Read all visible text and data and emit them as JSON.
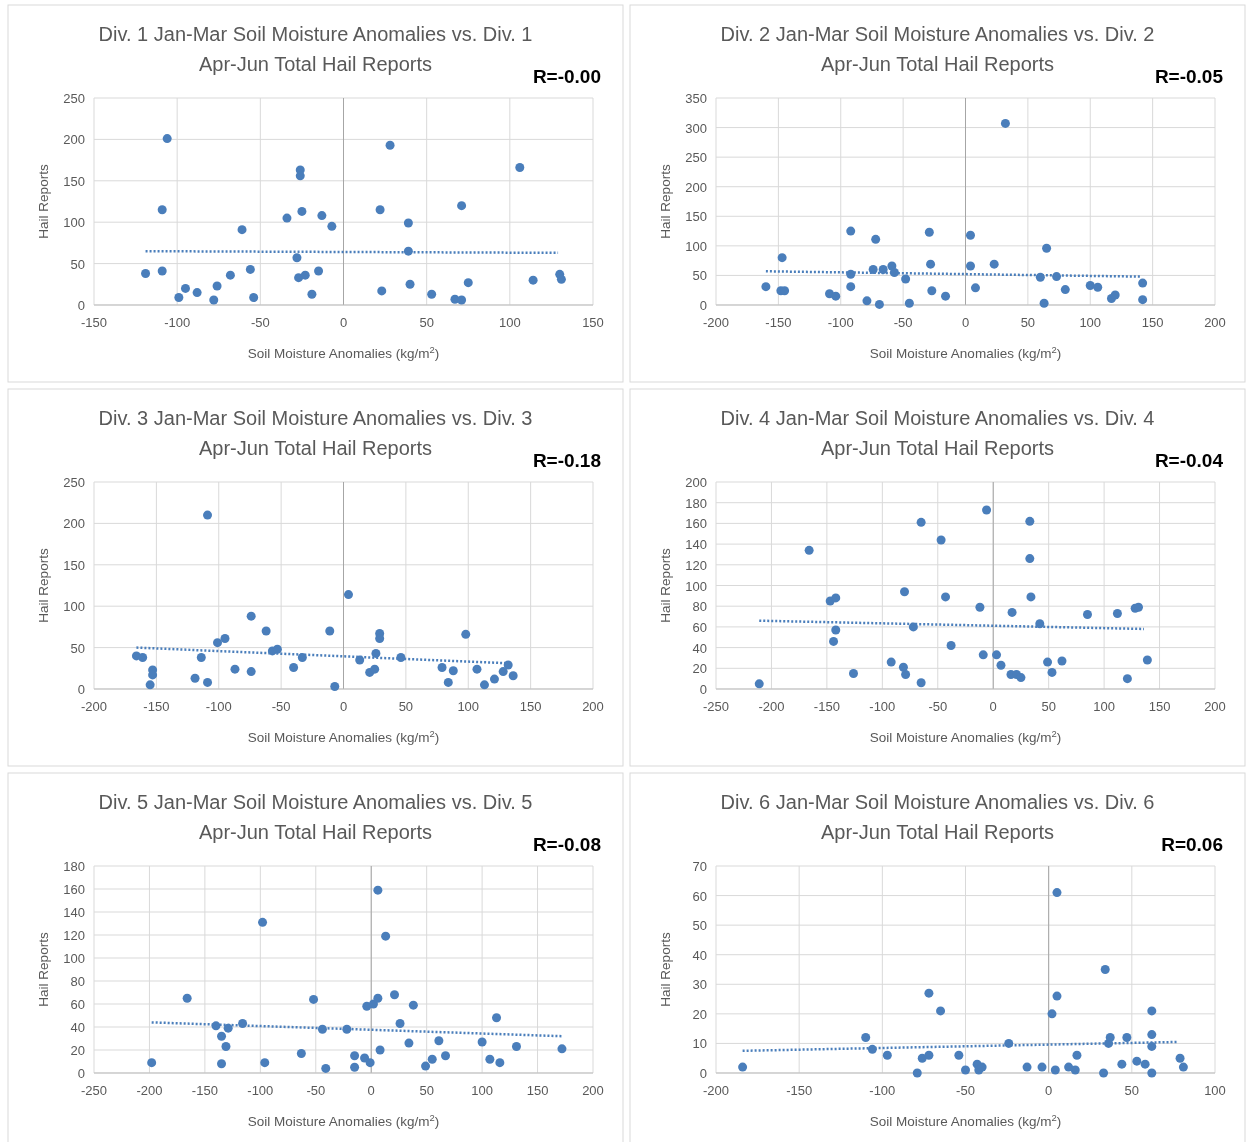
{
  "chart_data": [
    {
      "type": "scatter",
      "title": "Div. 1 Jan-Mar Soil Moisture Anomalies vs. Div. 1 Apr-Jun Total Hail Reports",
      "xlabel": "Soil Moisture Anomalies (kg/m$^{2}$)",
      "ylabel": "Hail Reports",
      "annotations": [
        "R=-0.00"
      ],
      "xlim": [
        -150,
        150
      ],
      "xticks": [
        -150,
        -100,
        -50,
        0,
        50,
        100,
        150
      ],
      "ylim": [
        0,
        250
      ],
      "yticks": [
        0,
        50,
        100,
        150,
        200,
        250
      ],
      "grid": true,
      "marker": "circle",
      "series": [
        {
          "color": "#4a7ebb",
          "x": [
            -119,
            -109,
            -109,
            -106,
            -99,
            -95,
            -88,
            -78,
            -76,
            -68,
            -61,
            -56,
            -54,
            -34,
            -28,
            -26,
            -26,
            -27,
            -25,
            -23,
            -19,
            -15,
            -13,
            -7,
            22,
            23,
            28,
            39,
            39,
            40,
            53,
            67,
            71,
            71,
            75,
            106,
            114,
            130,
            131
          ],
          "values": [
            38,
            115,
            41,
            201,
            9,
            20,
            15,
            6,
            23,
            36,
            91,
            43,
            9,
            105,
            57,
            163,
            156,
            33,
            113,
            36,
            13,
            41,
            108,
            95,
            115,
            17,
            193,
            99,
            65,
            25,
            13,
            7,
            6,
            120,
            27,
            166,
            30,
            37,
            31
          ]
        },
        {
          "type": "line",
          "color": "#4a7ebb",
          "line_style": "dotted",
          "marker": "none",
          "x": [
            -119,
            129
          ],
          "values": [
            65,
            63
          ]
        }
      ]
    },
    {
      "type": "scatter",
      "title": "Div. 2 Jan-Mar Soil Moisture Anomalies vs. Div. 2 Apr-Jun Total Hail Reports",
      "xlabel": "Soil Moisture Anomalies (kg/m$^{2}$)",
      "ylabel": "Hail Reports",
      "annotations": [
        "R=-0.05"
      ],
      "xlim": [
        -200,
        200
      ],
      "xticks": [
        -200,
        -150,
        -100,
        -50,
        0,
        50,
        100,
        150,
        200
      ],
      "ylim": [
        0,
        350
      ],
      "yticks": [
        0,
        50,
        100,
        150,
        200,
        250,
        300,
        350
      ],
      "grid": true,
      "marker": "circle",
      "series": [
        {
          "color": "#4a7ebb",
          "x": [
            -160,
            -147,
            -148,
            -145,
            -109,
            -104,
            -92,
            -92,
            -92,
            -79,
            -74,
            -72,
            -69,
            -66,
            -59,
            -57,
            -48,
            -45,
            -29,
            -28,
            -27,
            -16,
            4,
            4,
            8,
            23,
            32,
            60,
            63,
            65,
            73,
            80,
            100,
            106,
            117,
            120,
            142,
            142
          ],
          "values": [
            31,
            80,
            24,
            24,
            19,
            15,
            125,
            52,
            31,
            7,
            60,
            111,
            1,
            60,
            66,
            55,
            44,
            3,
            123,
            69,
            24,
            15,
            118,
            66,
            29,
            69,
            307,
            47,
            3,
            96,
            48,
            26,
            33,
            30,
            11,
            17,
            37,
            9
          ]
        },
        {
          "type": "line",
          "color": "#4a7ebb",
          "line_style": "dotted",
          "marker": "none",
          "x": [
            -160,
            141
          ],
          "values": [
            57,
            48
          ]
        }
      ]
    },
    {
      "type": "scatter",
      "title": "Div. 3 Jan-Mar Soil Moisture Anomalies vs. Div. 3 Apr-Jun Total Hail Reports",
      "xlabel": "Soil Moisture Anomalies (kg/m$^{2}$)",
      "ylabel": "Hail Reports",
      "annotations": [
        "R=-0.18"
      ],
      "xlim": [
        -200,
        200
      ],
      "xticks": [
        -200,
        -150,
        -100,
        -50,
        0,
        50,
        100,
        150,
        200
      ],
      "ylim": [
        0,
        250
      ],
      "yticks": [
        0,
        50,
        100,
        150,
        200,
        250
      ],
      "grid": true,
      "marker": "circle",
      "series": [
        {
          "color": "#4a7ebb",
          "x": [
            -166,
            -161,
            -153,
            -153,
            -155,
            -119,
            -114,
            -109,
            -109,
            -101,
            -95,
            -87,
            -74,
            -74,
            -62,
            -57,
            -53,
            -40,
            -33,
            -11,
            -7,
            4,
            13,
            21,
            25,
            26,
            29,
            29,
            46,
            79,
            84,
            88,
            98,
            107,
            113,
            121,
            128,
            132,
            136
          ],
          "values": [
            40,
            38,
            23,
            17,
            5,
            13,
            38,
            210,
            8,
            56,
            61,
            24,
            88,
            21,
            70,
            46,
            48,
            26,
            38,
            70,
            3,
            114,
            35,
            20,
            24,
            43,
            67,
            61,
            38,
            26,
            8,
            22,
            66,
            24,
            5,
            12,
            21,
            29,
            16
          ]
        },
        {
          "type": "line",
          "color": "#4a7ebb",
          "line_style": "dotted",
          "marker": "none",
          "x": [
            -166,
            133
          ],
          "values": [
            50,
            31
          ]
        }
      ]
    },
    {
      "type": "scatter",
      "title": "Div. 4 Jan-Mar Soil Moisture Anomalies vs. Div. 4 Apr-Jun Total Hail Reports",
      "xlabel": "Soil Moisture Anomalies (kg/m$^{2}$)",
      "ylabel": "Hail Reports",
      "annotations": [
        "R=-0.04"
      ],
      "xlim": [
        -250,
        200
      ],
      "xticks": [
        -250,
        -200,
        -150,
        -100,
        -50,
        0,
        50,
        100,
        150,
        200
      ],
      "ylim": [
        0,
        200
      ],
      "yticks": [
        0,
        20,
        40,
        60,
        80,
        100,
        120,
        140,
        160,
        180,
        200
      ],
      "grid": true,
      "marker": "circle",
      "series": [
        {
          "color": "#4a7ebb",
          "x": [
            -211,
            -166,
            -147,
            -142,
            -144,
            -142,
            -126,
            -92,
            -81,
            -79,
            -80,
            -72,
            -65,
            -65,
            -47,
            -43,
            -38,
            -12,
            -9,
            -6,
            3,
            7,
            16,
            17,
            21,
            25,
            33,
            33,
            34,
            42,
            49,
            53,
            62,
            85,
            112,
            121,
            128,
            131,
            139
          ],
          "values": [
            5,
            134,
            85,
            88,
            46,
            57,
            15,
            26,
            21,
            14,
            94,
            60,
            6,
            161,
            144,
            89,
            42,
            79,
            33,
            173,
            33,
            23,
            14,
            74,
            14,
            11,
            162,
            126,
            89,
            63,
            26,
            16,
            27,
            72,
            73,
            10,
            78,
            79,
            28
          ]
        },
        {
          "type": "line",
          "color": "#4a7ebb",
          "line_style": "dotted",
          "marker": "none",
          "x": [
            -211,
            136
          ],
          "values": [
            66,
            58
          ]
        }
      ]
    },
    {
      "type": "scatter",
      "title": "Div. 5 Jan-Mar Soil Moisture Anomalies vs. Div. 5 Apr-Jun Total Hail Reports",
      "xlabel": "Soil Moisture Anomalies (kg/m$^{2}$)",
      "ylabel": "Hail Reports",
      "annotations": [
        "R=-0.08"
      ],
      "xlim": [
        -250,
        200
      ],
      "xticks": [
        -250,
        -200,
        -150,
        -100,
        -50,
        0,
        50,
        100,
        150,
        200
      ],
      "ylim": [
        0,
        180
      ],
      "yticks": [
        0,
        20,
        40,
        60,
        80,
        100,
        120,
        140,
        160,
        180
      ],
      "grid": true,
      "marker": "circle",
      "series": [
        {
          "color": "#4a7ebb",
          "x": [
            -198,
            -166,
            -140,
            -135,
            -135,
            -131,
            -129,
            -116,
            -98,
            -96,
            -63,
            -52,
            -44,
            -41,
            -22,
            -15,
            -15,
            -6,
            -4,
            -1,
            2,
            6,
            6,
            8,
            13,
            21,
            26,
            34,
            38,
            49,
            55,
            61,
            67,
            100,
            107,
            113,
            116,
            131,
            172
          ],
          "values": [
            9,
            65,
            41,
            32,
            8,
            23,
            39,
            43,
            131,
            9,
            17,
            64,
            38,
            4,
            38,
            15,
            5,
            13,
            58,
            9,
            60,
            159,
            65,
            20,
            119,
            68,
            43,
            26,
            59,
            6,
            12,
            28,
            15,
            27,
            12,
            48,
            9,
            23,
            21
          ]
        },
        {
          "type": "line",
          "color": "#4a7ebb",
          "line_style": "dotted",
          "marker": "none",
          "x": [
            -198,
            172
          ],
          "values": [
            44,
            32
          ]
        }
      ]
    },
    {
      "type": "scatter",
      "title": "Div. 6 Jan-Mar Soil Moisture Anomalies vs. Div. 6 Apr-Jun Total Hail Reports",
      "xlabel": "Soil Moisture Anomalies (kg/m$^{2}$)",
      "ylabel": "Hail Reports",
      "annotations": [
        "R=0.06"
      ],
      "xlim": [
        -200,
        100
      ],
      "xticks": [
        -200,
        -150,
        -100,
        -50,
        0,
        50,
        100
      ],
      "ylim": [
        0,
        70
      ],
      "yticks": [
        0,
        10,
        20,
        30,
        40,
        50,
        60,
        70
      ],
      "grid": true,
      "marker": "circle",
      "series": [
        {
          "color": "#4a7ebb",
          "x": [
            -184,
            -110,
            -106,
            -97,
            -79,
            -76,
            -72,
            -72,
            -65,
            -54,
            -50,
            -43,
            -42,
            -40,
            -24,
            -13,
            -4,
            2,
            4,
            5,
            5,
            12,
            16,
            17,
            33,
            34,
            36,
            37,
            44,
            47,
            53,
            58,
            62,
            62,
            62,
            62,
            79,
            81
          ],
          "values": [
            2,
            12,
            8,
            6,
            0,
            5,
            27,
            6,
            21,
            6,
            1,
            3,
            1,
            2,
            10,
            2,
            2,
            20,
            1,
            61,
            26,
            2,
            1,
            6,
            0,
            35,
            10,
            12,
            3,
            12,
            4,
            3,
            21,
            13,
            9,
            0,
            5,
            2
          ]
        },
        {
          "type": "line",
          "color": "#4a7ebb",
          "line_style": "dotted",
          "marker": "none",
          "x": [
            -184,
            78
          ],
          "values": [
            7.5,
            10.5
          ]
        }
      ]
    }
  ]
}
